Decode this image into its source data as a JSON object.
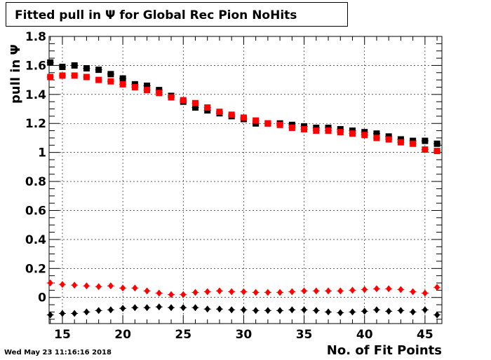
{
  "chart_data": {
    "type": "scatter",
    "title": "Fitted pull in  Ψ  for Global Rec Pion NoHits",
    "xlabel": "No. of Fit Points",
    "ylabel": "pull in  Ψ",
    "xlim": [
      13.9,
      46.4
    ],
    "ylim": [
      -0.18,
      1.8
    ],
    "xticks": [
      15,
      20,
      25,
      30,
      35,
      40,
      45
    ],
    "yticks": [
      0,
      0.2,
      0.4,
      0.6,
      0.8,
      1,
      1.2,
      1.4,
      1.6,
      1.8
    ],
    "xtick_labels": [
      "15",
      "20",
      "25",
      "30",
      "35",
      "40",
      "45"
    ],
    "ytick_labels": [
      "0",
      "0.2",
      "0.4",
      "0.6",
      "0.8",
      "1",
      "1.2",
      "1.4",
      "1.6",
      "1.8"
    ],
    "grid": true,
    "x": [
      14,
      15,
      16,
      17,
      18,
      19,
      20,
      21,
      22,
      23,
      24,
      25,
      26,
      27,
      28,
      29,
      30,
      31,
      32,
      33,
      34,
      35,
      36,
      37,
      38,
      39,
      40,
      41,
      42,
      43,
      44,
      45,
      46
    ],
    "series": [
      {
        "marker": "square",
        "color": "#000000",
        "values": [
          1.62,
          1.59,
          1.6,
          1.58,
          1.57,
          1.54,
          1.51,
          1.47,
          1.46,
          1.43,
          1.39,
          1.35,
          1.31,
          1.29,
          1.27,
          1.25,
          1.23,
          1.2,
          1.2,
          1.2,
          1.19,
          1.18,
          1.17,
          1.17,
          1.16,
          1.15,
          1.14,
          1.13,
          1.11,
          1.09,
          1.08,
          1.08,
          1.06
        ]
      },
      {
        "marker": "square",
        "color": "#ff0000",
        "values": [
          1.52,
          1.53,
          1.53,
          1.52,
          1.5,
          1.49,
          1.47,
          1.45,
          1.43,
          1.41,
          1.38,
          1.36,
          1.34,
          1.31,
          1.28,
          1.26,
          1.24,
          1.22,
          1.2,
          1.19,
          1.17,
          1.16,
          1.15,
          1.15,
          1.14,
          1.13,
          1.12,
          1.1,
          1.09,
          1.07,
          1.06,
          1.02,
          1.01
        ]
      },
      {
        "marker": "diamond",
        "color": "#ff0000",
        "values": [
          0.1,
          0.09,
          0.085,
          0.08,
          0.075,
          0.08,
          0.065,
          0.065,
          0.045,
          0.03,
          0.02,
          0.02,
          0.035,
          0.04,
          0.045,
          0.04,
          0.04,
          0.035,
          0.035,
          0.035,
          0.04,
          0.045,
          0.045,
          0.045,
          0.045,
          0.05,
          0.055,
          0.06,
          0.06,
          0.055,
          0.04,
          0.03,
          0.07
        ]
      },
      {
        "marker": "diamond",
        "color": "#000000",
        "values": [
          -0.12,
          -0.11,
          -0.11,
          -0.1,
          -0.09,
          -0.085,
          -0.075,
          -0.07,
          -0.07,
          -0.065,
          -0.07,
          -0.07,
          -0.07,
          -0.08,
          -0.08,
          -0.085,
          -0.085,
          -0.09,
          -0.09,
          -0.09,
          -0.085,
          -0.085,
          -0.09,
          -0.1,
          -0.105,
          -0.1,
          -0.095,
          -0.085,
          -0.095,
          -0.09,
          -0.1,
          -0.085,
          -0.12
        ]
      }
    ]
  },
  "timestamp": "Wed May 23 11:16:16 2018"
}
